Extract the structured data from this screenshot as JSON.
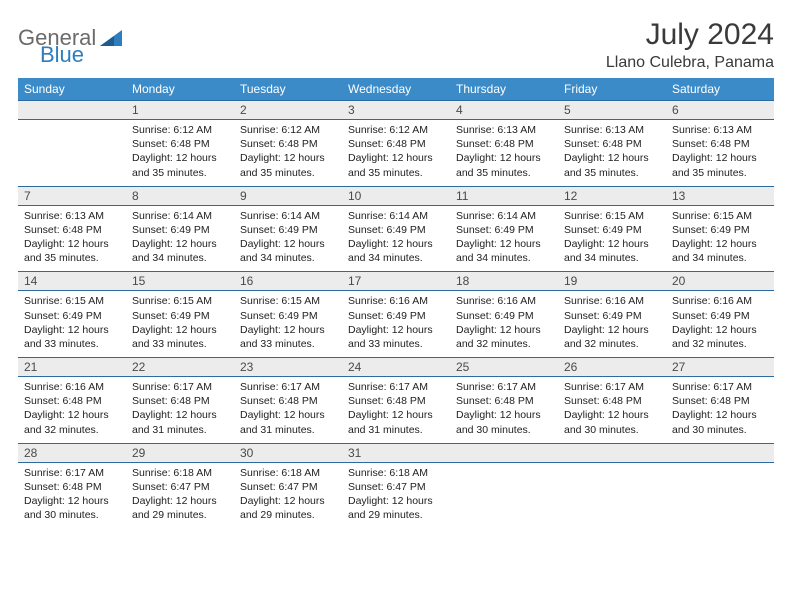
{
  "logo": {
    "text1": "General",
    "text2": "Blue"
  },
  "title": "July 2024",
  "location": "Llano Culebra, Panama",
  "colors": {
    "header_bg": "#3b8bc9",
    "header_text": "#ffffff",
    "daynum_bg": "#ececec",
    "daynum_border": "#2d6aa0",
    "body_text": "#222222",
    "title_text": "#3a3a3a",
    "logo_gray": "#6b6b6b",
    "logo_blue": "#2d7dbf"
  },
  "day_names": [
    "Sunday",
    "Monday",
    "Tuesday",
    "Wednesday",
    "Thursday",
    "Friday",
    "Saturday"
  ],
  "weeks": [
    {
      "nums": [
        "",
        "1",
        "2",
        "3",
        "4",
        "5",
        "6"
      ],
      "cells": [
        null,
        {
          "sunrise": "Sunrise: 6:12 AM",
          "sunset": "Sunset: 6:48 PM",
          "daylight": "Daylight: 12 hours and 35 minutes."
        },
        {
          "sunrise": "Sunrise: 6:12 AM",
          "sunset": "Sunset: 6:48 PM",
          "daylight": "Daylight: 12 hours and 35 minutes."
        },
        {
          "sunrise": "Sunrise: 6:12 AM",
          "sunset": "Sunset: 6:48 PM",
          "daylight": "Daylight: 12 hours and 35 minutes."
        },
        {
          "sunrise": "Sunrise: 6:13 AM",
          "sunset": "Sunset: 6:48 PM",
          "daylight": "Daylight: 12 hours and 35 minutes."
        },
        {
          "sunrise": "Sunrise: 6:13 AM",
          "sunset": "Sunset: 6:48 PM",
          "daylight": "Daylight: 12 hours and 35 minutes."
        },
        {
          "sunrise": "Sunrise: 6:13 AM",
          "sunset": "Sunset: 6:48 PM",
          "daylight": "Daylight: 12 hours and 35 minutes."
        }
      ]
    },
    {
      "nums": [
        "7",
        "8",
        "9",
        "10",
        "11",
        "12",
        "13"
      ],
      "cells": [
        {
          "sunrise": "Sunrise: 6:13 AM",
          "sunset": "Sunset: 6:48 PM",
          "daylight": "Daylight: 12 hours and 35 minutes."
        },
        {
          "sunrise": "Sunrise: 6:14 AM",
          "sunset": "Sunset: 6:49 PM",
          "daylight": "Daylight: 12 hours and 34 minutes."
        },
        {
          "sunrise": "Sunrise: 6:14 AM",
          "sunset": "Sunset: 6:49 PM",
          "daylight": "Daylight: 12 hours and 34 minutes."
        },
        {
          "sunrise": "Sunrise: 6:14 AM",
          "sunset": "Sunset: 6:49 PM",
          "daylight": "Daylight: 12 hours and 34 minutes."
        },
        {
          "sunrise": "Sunrise: 6:14 AM",
          "sunset": "Sunset: 6:49 PM",
          "daylight": "Daylight: 12 hours and 34 minutes."
        },
        {
          "sunrise": "Sunrise: 6:15 AM",
          "sunset": "Sunset: 6:49 PM",
          "daylight": "Daylight: 12 hours and 34 minutes."
        },
        {
          "sunrise": "Sunrise: 6:15 AM",
          "sunset": "Sunset: 6:49 PM",
          "daylight": "Daylight: 12 hours and 34 minutes."
        }
      ]
    },
    {
      "nums": [
        "14",
        "15",
        "16",
        "17",
        "18",
        "19",
        "20"
      ],
      "cells": [
        {
          "sunrise": "Sunrise: 6:15 AM",
          "sunset": "Sunset: 6:49 PM",
          "daylight": "Daylight: 12 hours and 33 minutes."
        },
        {
          "sunrise": "Sunrise: 6:15 AM",
          "sunset": "Sunset: 6:49 PM",
          "daylight": "Daylight: 12 hours and 33 minutes."
        },
        {
          "sunrise": "Sunrise: 6:15 AM",
          "sunset": "Sunset: 6:49 PM",
          "daylight": "Daylight: 12 hours and 33 minutes."
        },
        {
          "sunrise": "Sunrise: 6:16 AM",
          "sunset": "Sunset: 6:49 PM",
          "daylight": "Daylight: 12 hours and 33 minutes."
        },
        {
          "sunrise": "Sunrise: 6:16 AM",
          "sunset": "Sunset: 6:49 PM",
          "daylight": "Daylight: 12 hours and 32 minutes."
        },
        {
          "sunrise": "Sunrise: 6:16 AM",
          "sunset": "Sunset: 6:49 PM",
          "daylight": "Daylight: 12 hours and 32 minutes."
        },
        {
          "sunrise": "Sunrise: 6:16 AM",
          "sunset": "Sunset: 6:49 PM",
          "daylight": "Daylight: 12 hours and 32 minutes."
        }
      ]
    },
    {
      "nums": [
        "21",
        "22",
        "23",
        "24",
        "25",
        "26",
        "27"
      ],
      "cells": [
        {
          "sunrise": "Sunrise: 6:16 AM",
          "sunset": "Sunset: 6:48 PM",
          "daylight": "Daylight: 12 hours and 32 minutes."
        },
        {
          "sunrise": "Sunrise: 6:17 AM",
          "sunset": "Sunset: 6:48 PM",
          "daylight": "Daylight: 12 hours and 31 minutes."
        },
        {
          "sunrise": "Sunrise: 6:17 AM",
          "sunset": "Sunset: 6:48 PM",
          "daylight": "Daylight: 12 hours and 31 minutes."
        },
        {
          "sunrise": "Sunrise: 6:17 AM",
          "sunset": "Sunset: 6:48 PM",
          "daylight": "Daylight: 12 hours and 31 minutes."
        },
        {
          "sunrise": "Sunrise: 6:17 AM",
          "sunset": "Sunset: 6:48 PM",
          "daylight": "Daylight: 12 hours and 30 minutes."
        },
        {
          "sunrise": "Sunrise: 6:17 AM",
          "sunset": "Sunset: 6:48 PM",
          "daylight": "Daylight: 12 hours and 30 minutes."
        },
        {
          "sunrise": "Sunrise: 6:17 AM",
          "sunset": "Sunset: 6:48 PM",
          "daylight": "Daylight: 12 hours and 30 minutes."
        }
      ]
    },
    {
      "nums": [
        "28",
        "29",
        "30",
        "31",
        "",
        "",
        ""
      ],
      "cells": [
        {
          "sunrise": "Sunrise: 6:17 AM",
          "sunset": "Sunset: 6:48 PM",
          "daylight": "Daylight: 12 hours and 30 minutes."
        },
        {
          "sunrise": "Sunrise: 6:18 AM",
          "sunset": "Sunset: 6:47 PM",
          "daylight": "Daylight: 12 hours and 29 minutes."
        },
        {
          "sunrise": "Sunrise: 6:18 AM",
          "sunset": "Sunset: 6:47 PM",
          "daylight": "Daylight: 12 hours and 29 minutes."
        },
        {
          "sunrise": "Sunrise: 6:18 AM",
          "sunset": "Sunset: 6:47 PM",
          "daylight": "Daylight: 12 hours and 29 minutes."
        },
        null,
        null,
        null
      ]
    }
  ]
}
